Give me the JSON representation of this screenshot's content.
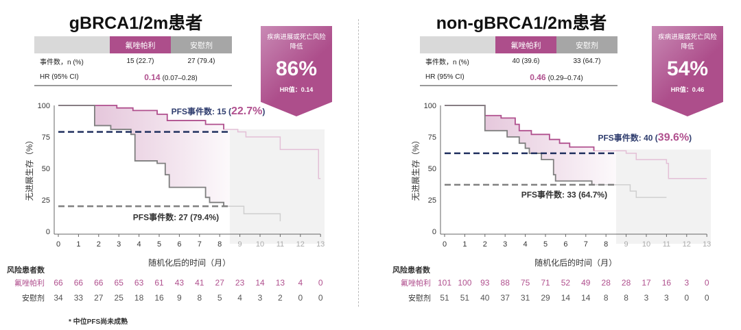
{
  "colors": {
    "olaparib": "#b0508e",
    "placebo": "#7f7f7f",
    "median_ola": "#1f2f5e",
    "median_pla": "#7f7f7f",
    "header_ola": "#ad4e8b",
    "header_pla": "#a6a6a6",
    "header_blank": "#d9d9d9"
  },
  "table_headers": {
    "ola": "氟唑帕利",
    "pla": "安慰剂",
    "events": "事件数，n (%)",
    "hr": "HR (95% CI)"
  },
  "badge_label": "疾病进展或死亡风险降低",
  "risk_title": "风险患者数",
  "footnote": "* 中位PFS尚未成熟",
  "chart_data": [
    {
      "type": "line",
      "title": "gBRCA1/2m患者",
      "xlabel": "随机化后的时间（月）",
      "ylabel": "无进展生存（%）",
      "xlim": [
        0,
        13
      ],
      "ylim": [
        0,
        100
      ],
      "xticks": [
        "0",
        "1",
        "2",
        "3",
        "4",
        "5",
        "6",
        "7",
        "8",
        "9",
        "10",
        "11",
        "12",
        "13"
      ],
      "yticks": [
        "0",
        "25",
        "50",
        "75",
        "100"
      ],
      "events": {
        "ola": "15 (22.7)",
        "pla": "27 (79.4)"
      },
      "hr": "0.14",
      "ci": "(0.07–0.28)",
      "reduction": "86%",
      "hr_label": "HR值：0.14",
      "ann_ola": {
        "prefix": "PFS事件数: 15 (",
        "pct": "22.7%",
        "suffix": ")"
      },
      "ann_pla": "PFS事件数: 27 (79.4%)",
      "mature_until": 8.5,
      "median_ola": 79,
      "median_pla": 20,
      "series": [
        {
          "name": "氟唑帕利",
          "x": [
            0,
            1.8,
            2.9,
            3.7,
            4.9,
            5.4,
            7.3,
            8.2,
            8.9,
            9.3,
            11.0,
            12.9,
            13
          ],
          "y": [
            100,
            100,
            98,
            96,
            93,
            88,
            85,
            81,
            79,
            75,
            65,
            42,
            42
          ]
        },
        {
          "name": "安慰剂",
          "x": [
            0,
            1.8,
            2.6,
            3.6,
            3.8,
            4.9,
            5.3,
            5.5,
            7.3,
            7.5,
            8.2,
            9.2,
            11.0
          ],
          "y": [
            100,
            84,
            81,
            77,
            56,
            54,
            45,
            35,
            27,
            23,
            20,
            14,
            8
          ]
        }
      ],
      "risk": {
        "ola": [
          "66",
          "66",
          "66",
          "65",
          "63",
          "61",
          "43",
          "41",
          "27",
          "23",
          "14",
          "13",
          "4",
          "0"
        ],
        "pla": [
          "34",
          "33",
          "27",
          "25",
          "18",
          "16",
          "9",
          "8",
          "5",
          "4",
          "3",
          "2",
          "0",
          "0"
        ]
      }
    },
    {
      "type": "line",
      "title": "non-gBRCA1/2m患者",
      "xlabel": "随机化后的时间（月）",
      "ylabel": "无进展生存（%）",
      "xlim": [
        0,
        13
      ],
      "ylim": [
        0,
        100
      ],
      "xticks": [
        "0",
        "1",
        "2",
        "3",
        "4",
        "5",
        "6",
        "7",
        "8",
        "9",
        "10",
        "11",
        "12",
        "13"
      ],
      "yticks": [
        "0",
        "25",
        "50",
        "75",
        "100"
      ],
      "events": {
        "ola": "40 (39.6)",
        "pla": "33 (64.7)"
      },
      "hr": "0.46",
      "ci": "(0.29–0.74)",
      "reduction": "54%",
      "hr_label": "HR值：0.46",
      "ann_ola": {
        "prefix": "PFS事件数: 40 (",
        "pct": "39.6%",
        "suffix": ")"
      },
      "ann_pla": "PFS事件数: 33 (64.7%)",
      "mature_until": 8.5,
      "median_ola": 62,
      "median_pla": 37,
      "series": [
        {
          "name": "氟唑帕利",
          "x": [
            0,
            1.9,
            2.0,
            2.8,
            3.5,
            3.7,
            4.3,
            5.2,
            5.7,
            6.2,
            7.4,
            9.0,
            9.5,
            11.0,
            11.1,
            13
          ],
          "y": [
            100,
            100,
            92,
            90,
            85,
            80,
            77,
            73,
            70,
            67,
            64,
            62,
            57,
            54,
            42,
            42
          ]
        },
        {
          "name": "安慰剂",
          "x": [
            0,
            1.8,
            2.0,
            3.1,
            3.7,
            4.0,
            4.2,
            4.8,
            5.4,
            5.5,
            7.3,
            9.2,
            9.5,
            11.0
          ],
          "y": [
            100,
            100,
            80,
            75,
            70,
            66,
            62,
            57,
            45,
            40,
            37,
            32,
            27,
            27
          ]
        }
      ],
      "risk": {
        "ola": [
          "101",
          "100",
          "93",
          "88",
          "75",
          "71",
          "52",
          "49",
          "28",
          "28",
          "17",
          "16",
          "3",
          "0"
        ],
        "pla": [
          "51",
          "51",
          "40",
          "37",
          "31",
          "29",
          "14",
          "14",
          "8",
          "8",
          "3",
          "3",
          "0",
          "0"
        ]
      }
    }
  ]
}
